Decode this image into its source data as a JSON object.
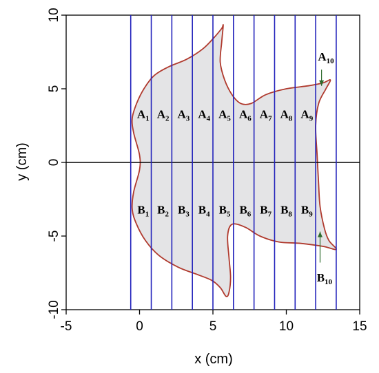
{
  "chart_data": {
    "type": "diagram",
    "xlabel": "x (cm)",
    "ylabel": "y (cm)",
    "xlim": [
      -5,
      15
    ],
    "ylim": [
      -10,
      10
    ],
    "x_ticks": [
      -5,
      0,
      5,
      10,
      15
    ],
    "y_ticks": [
      -10,
      -5,
      0,
      5,
      10
    ],
    "colors": {
      "outline": "#b03a2e",
      "fill": "#e4e4e6",
      "strips": "#2222bb",
      "axis": "#000000",
      "arrow": "#2e6b2e"
    },
    "strip_lines_x": [
      -0.6,
      0.8,
      2.2,
      3.6,
      5.0,
      6.4,
      7.8,
      9.2,
      10.6,
      12.0,
      13.4
    ],
    "upper_regions": [
      {
        "letter": "A",
        "index": "1",
        "x": 0.25
      },
      {
        "letter": "A",
        "index": "2",
        "x": 1.6
      },
      {
        "letter": "A",
        "index": "3",
        "x": 3.0
      },
      {
        "letter": "A",
        "index": "4",
        "x": 4.4
      },
      {
        "letter": "A",
        "index": "5",
        "x": 5.8
      },
      {
        "letter": "A",
        "index": "6",
        "x": 7.2
      },
      {
        "letter": "A",
        "index": "7",
        "x": 8.6
      },
      {
        "letter": "A",
        "index": "8",
        "x": 10.0
      },
      {
        "letter": "A",
        "index": "9",
        "x": 11.4
      }
    ],
    "upper_label_y": 3.3,
    "lower_regions": [
      {
        "letter": "B",
        "index": "1",
        "x": 0.25
      },
      {
        "letter": "B",
        "index": "2",
        "x": 1.6
      },
      {
        "letter": "B",
        "index": "3",
        "x": 3.0
      },
      {
        "letter": "B",
        "index": "4",
        "x": 4.4
      },
      {
        "letter": "B",
        "index": "5",
        "x": 5.8
      },
      {
        "letter": "B",
        "index": "6",
        "x": 7.2
      },
      {
        "letter": "B",
        "index": "7",
        "x": 8.6
      },
      {
        "letter": "B",
        "index": "8",
        "x": 10.0
      },
      {
        "letter": "B",
        "index": "9",
        "x": 11.4
      }
    ],
    "lower_label_y": -3.2,
    "callouts": [
      {
        "letter": "A",
        "index": "10",
        "x": 12.7,
        "y": 7.2,
        "arrow_from": [
          12.4,
          6.3
        ],
        "arrow_to": [
          12.4,
          5.2
        ]
      },
      {
        "letter": "B",
        "index": "10",
        "x": 12.6,
        "y": -7.8,
        "arrow_from": [
          12.3,
          -6.8
        ],
        "arrow_to": [
          12.3,
          -4.7
        ]
      }
    ],
    "outline": [
      [
        -0.5,
        3.0
      ],
      [
        -0.2,
        4.0
      ],
      [
        0.3,
        5.0
      ],
      [
        1.0,
        5.9
      ],
      [
        2.0,
        6.5
      ],
      [
        3.2,
        7.0
      ],
      [
        4.3,
        7.7
      ],
      [
        5.1,
        8.5
      ],
      [
        5.6,
        9.1
      ],
      [
        5.7,
        9.3
      ],
      [
        5.6,
        8.2
      ],
      [
        5.5,
        6.8
      ],
      [
        5.8,
        5.6
      ],
      [
        6.3,
        4.6
      ],
      [
        6.9,
        4.0
      ],
      [
        7.6,
        4.0
      ],
      [
        8.6,
        4.6
      ],
      [
        10.0,
        5.0
      ],
      [
        11.5,
        5.2
      ],
      [
        12.5,
        5.4
      ],
      [
        13.0,
        5.6
      ],
      [
        12.7,
        5.0
      ],
      [
        12.2,
        4.0
      ],
      [
        12.0,
        2.5
      ],
      [
        12.1,
        0.5
      ],
      [
        12.2,
        -1.5
      ],
      [
        12.3,
        -3.0
      ],
      [
        12.6,
        -4.5
      ],
      [
        12.9,
        -5.3
      ],
      [
        13.4,
        -5.9
      ],
      [
        12.5,
        -5.7
      ],
      [
        11.0,
        -5.5
      ],
      [
        9.5,
        -5.4
      ],
      [
        8.2,
        -5.0
      ],
      [
        7.2,
        -4.4
      ],
      [
        6.3,
        -4.2
      ],
      [
        6.0,
        -5.0
      ],
      [
        6.1,
        -6.5
      ],
      [
        6.2,
        -7.8
      ],
      [
        6.1,
        -8.8
      ],
      [
        5.9,
        -9.1
      ],
      [
        5.5,
        -8.5
      ],
      [
        4.9,
        -8.0
      ],
      [
        3.9,
        -7.6
      ],
      [
        2.6,
        -7.1
      ],
      [
        1.3,
        -6.3
      ],
      [
        0.4,
        -5.3
      ],
      [
        -0.2,
        -4.2
      ],
      [
        -0.5,
        -3.2
      ],
      [
        -0.4,
        -2.0
      ],
      [
        0.0,
        -0.5
      ],
      [
        0.0,
        0.5
      ],
      [
        -0.4,
        2.0
      ]
    ]
  }
}
